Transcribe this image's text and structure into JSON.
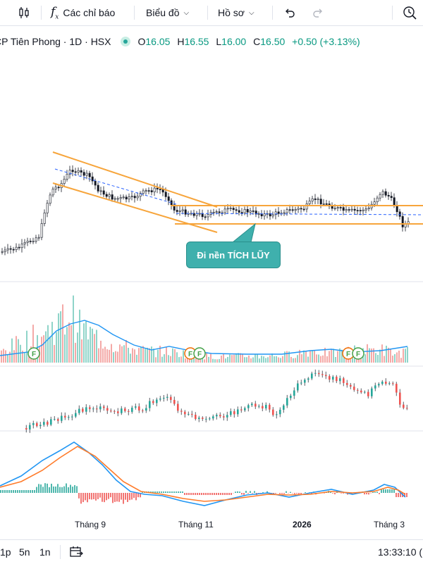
{
  "toolbar": {
    "indicators_label": "Các chỉ báo",
    "chart_type_label": "Biểu đồ",
    "profile_label": "Hồ sơ"
  },
  "legend": {
    "symbol": "CP Tiên Phong · 1D · HSX",
    "open_label": "O",
    "open": "16.05",
    "high_label": "H",
    "high": "16.55",
    "low_label": "L",
    "low": "16.00",
    "close_label": "C",
    "close": "16.50",
    "change": "+0.50 (+3.13%)"
  },
  "annotation": {
    "text": "Đi nền TÍCH LŨY"
  },
  "x_axis": {
    "labels": [
      "Tháng 9",
      "Tháng 11",
      "2026",
      "Tháng 3"
    ]
  },
  "bottom": {
    "range_1": "1p",
    "range_2": "5n",
    "range_3": "1n",
    "time": "13:33:10 (",
    "icon": "calendar-range-icon"
  },
  "colors": {
    "up": "#26a69a",
    "down": "#ef5350",
    "channel": "#f7a53b",
    "macd": "#2196f3",
    "signal": "#ff7b2a",
    "volume_ma": "#2196f3",
    "dashed": "#2962ff"
  },
  "chart_data": {
    "type": "candlestick",
    "symbol": "CP Tiên Phong",
    "interval": "1D",
    "exchange": "HSX",
    "ohlc_last": {
      "open": 16.05,
      "high": 16.55,
      "low": 16.0,
      "close": 16.5,
      "change": 0.5,
      "change_pct": 3.13
    },
    "panes": [
      "price",
      "volume",
      "oscillator",
      "macd"
    ],
    "price_annotations": [
      "descending channel",
      "horizontal accumulation range"
    ],
    "volume_markers": [
      "F",
      "F",
      "F",
      "F",
      "F"
    ]
  }
}
